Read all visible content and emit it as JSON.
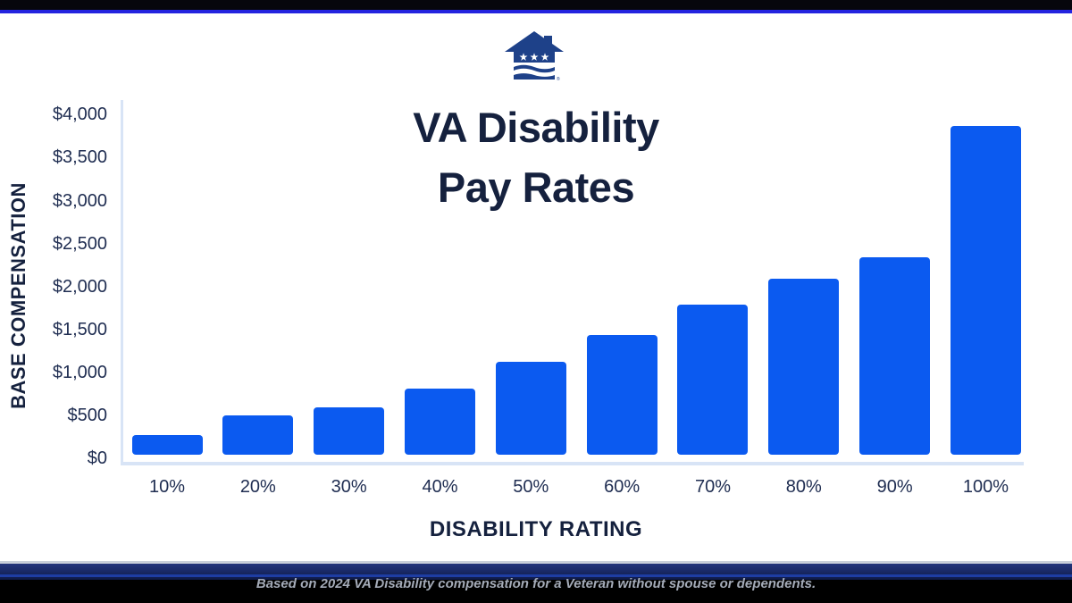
{
  "page": {
    "background": "#ffffff",
    "top_bar_color": "#06060c",
    "top_accent_color": "#2424df"
  },
  "header": {
    "logo_icon": "house-with-stars-and-flag-stripes",
    "logo_registered_mark": "®"
  },
  "chart_data": {
    "type": "bar",
    "title": "VA Disability Pay Rates",
    "title_lines": [
      "VA Disability",
      "Pay Rates"
    ],
    "xlabel": "DISABILITY RATING",
    "ylabel": "BASE COMPENSATION",
    "categories": [
      "10%",
      "20%",
      "30%",
      "40%",
      "50%",
      "60%",
      "70%",
      "80%",
      "90%",
      "100%"
    ],
    "values": [
      230,
      460,
      550,
      780,
      1090,
      1400,
      1760,
      2060,
      2310,
      3850
    ],
    "y_tick_labels": [
      "$4,000",
      "$3,500",
      "$3,000",
      "$2,500",
      "$2,000",
      "$1,500",
      "$1,000",
      "$500",
      "$0"
    ],
    "ylim": [
      0,
      4000
    ],
    "grid": false,
    "legend": "none",
    "bar_color": "#0b5af0",
    "footnote": "Based on 2024 VA Disability compensation for a Veteran without spouse or dependents."
  },
  "colors": {
    "bar_blue": "#0b5af0",
    "title_navy": "#15213e",
    "tick_navy": "#202e52",
    "axis_light_blue": "#d8e4f6",
    "logo_navy": "#1e4189",
    "footer_navy": "#1b2b6a",
    "footer_black": "#000000",
    "footnote_gray": "#a4abb8"
  }
}
